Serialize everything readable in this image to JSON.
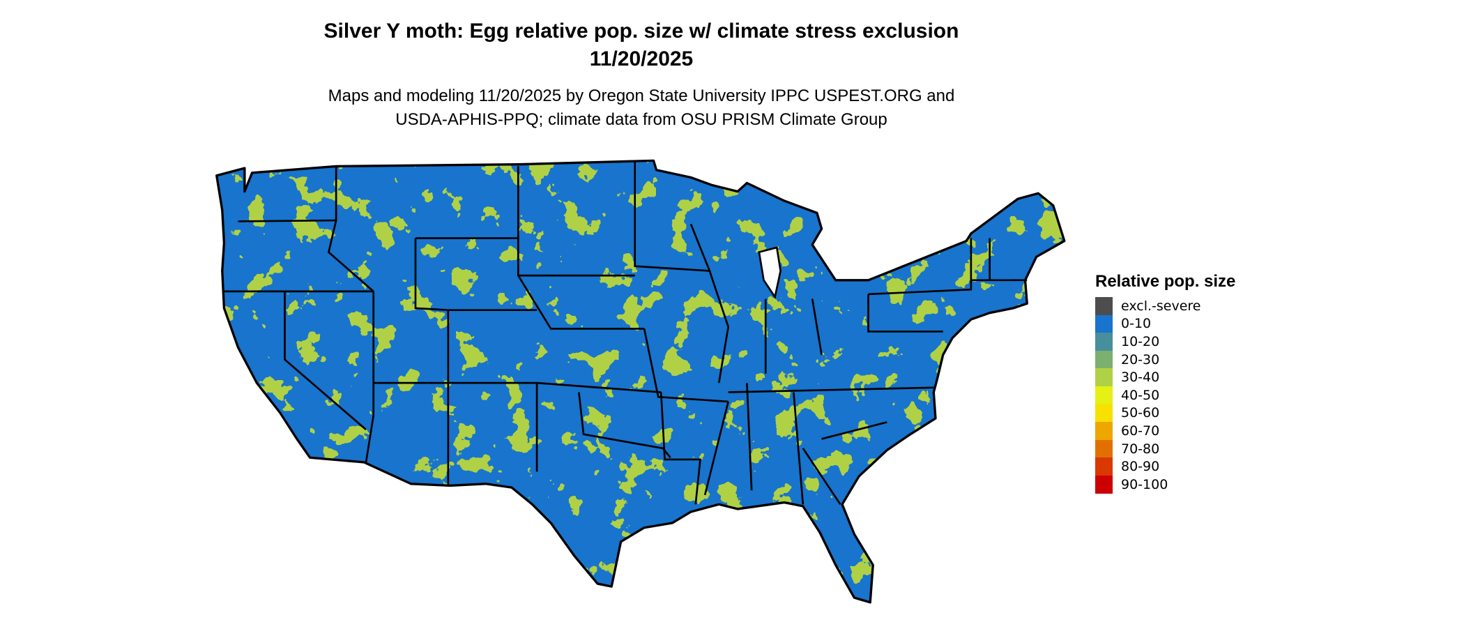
{
  "title": {
    "line1": "Silver Y moth: Egg relative pop. size w/ climate stress exclusion",
    "line2": "11/20/2025"
  },
  "subtitle": {
    "line1": "Maps and modeling 11/20/2025 by Oregon State University IPPC USPEST.ORG and",
    "line2": "USDA-APHIS-PPQ; climate data from OSU PRISM Climate Group"
  },
  "map": {
    "region": "Contiguous United States",
    "dominant_class": "0-10",
    "secondary_class": "30-40"
  },
  "legend": {
    "title": "Relative pop. size",
    "items": [
      {
        "label": "excl.-severe",
        "color": "#4d4d4d"
      },
      {
        "label": "0-10",
        "color": "#1874cd"
      },
      {
        "label": "10-20",
        "color": "#478f9c"
      },
      {
        "label": "20-30",
        "color": "#7cb070"
      },
      {
        "label": "30-40",
        "color": "#b0d145"
      },
      {
        "label": "40-50",
        "color": "#e5f015"
      },
      {
        "label": "50-60",
        "color": "#f8e000"
      },
      {
        "label": "60-70",
        "color": "#eea600"
      },
      {
        "label": "70-80",
        "color": "#e27000"
      },
      {
        "label": "80-90",
        "color": "#d93800"
      },
      {
        "label": "90-100",
        "color": "#cc0000"
      }
    ]
  }
}
